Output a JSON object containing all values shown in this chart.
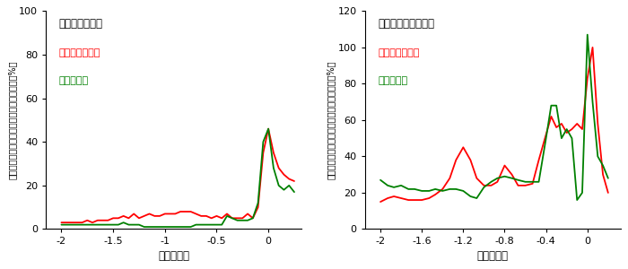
{
  "left_bracket_title": "【前腕の筋肉】",
  "right_bracket_title": "【手のひらの筋肉】",
  "legend_red": "赤：ストレート",
  "legend_green": "緑：カーブ",
  "xlabel": "時間（秒）",
  "ylabel": "最大随意収縮強度を基準とした表面筋電位（%）",
  "left_xlim": [
    -2.15,
    0.32
  ],
  "left_xticks": [
    -2,
    -1.5,
    -1,
    -0.5,
    0
  ],
  "left_xticklabels": [
    "-2",
    "-1.5",
    "-1",
    "-0.5",
    "0"
  ],
  "left_ylim": [
    0,
    100
  ],
  "left_yticks": [
    0,
    20,
    40,
    60,
    80,
    100
  ],
  "right_xlim": [
    -2.15,
    0.32
  ],
  "right_xticks": [
    -2,
    -1.6,
    -1.2,
    -0.8,
    -0.4,
    0
  ],
  "right_xticklabels": [
    "-2",
    "-1.6",
    "-1.2",
    "-0.8",
    "-0.4",
    "0"
  ],
  "right_ylim": [
    0,
    120
  ],
  "right_yticks": [
    0,
    20,
    40,
    60,
    80,
    100,
    120
  ],
  "red_color": "#ff0000",
  "green_color": "#008000",
  "line_width": 1.3,
  "left_red_x": [
    -2.0,
    -1.95,
    -1.9,
    -1.85,
    -1.8,
    -1.75,
    -1.7,
    -1.65,
    -1.6,
    -1.55,
    -1.5,
    -1.45,
    -1.4,
    -1.35,
    -1.3,
    -1.25,
    -1.2,
    -1.15,
    -1.1,
    -1.05,
    -1.0,
    -0.95,
    -0.9,
    -0.85,
    -0.8,
    -0.75,
    -0.7,
    -0.65,
    -0.6,
    -0.55,
    -0.5,
    -0.45,
    -0.4,
    -0.35,
    -0.3,
    -0.25,
    -0.2,
    -0.15,
    -0.1,
    -0.05,
    0.0,
    0.05,
    0.1,
    0.15,
    0.2,
    0.25
  ],
  "left_red_y": [
    3,
    3,
    3,
    3,
    3,
    4,
    3,
    4,
    4,
    4,
    5,
    5,
    6,
    5,
    7,
    5,
    6,
    7,
    6,
    6,
    7,
    7,
    7,
    8,
    8,
    8,
    7,
    6,
    6,
    5,
    6,
    5,
    7,
    5,
    5,
    5,
    7,
    5,
    10,
    35,
    46,
    35,
    28,
    25,
    23,
    22
  ],
  "left_green_x": [
    -2.0,
    -1.95,
    -1.9,
    -1.85,
    -1.8,
    -1.75,
    -1.7,
    -1.65,
    -1.6,
    -1.55,
    -1.5,
    -1.45,
    -1.4,
    -1.35,
    -1.3,
    -1.25,
    -1.2,
    -1.15,
    -1.1,
    -1.05,
    -1.0,
    -0.95,
    -0.9,
    -0.85,
    -0.8,
    -0.75,
    -0.7,
    -0.65,
    -0.6,
    -0.55,
    -0.5,
    -0.45,
    -0.4,
    -0.35,
    -0.3,
    -0.25,
    -0.2,
    -0.15,
    -0.1,
    -0.05,
    0.0,
    0.05,
    0.1,
    0.15,
    0.2,
    0.25
  ],
  "left_green_y": [
    2,
    2,
    2,
    2,
    2,
    2,
    2,
    2,
    2,
    2,
    2,
    2,
    3,
    2,
    2,
    2,
    1,
    1,
    1,
    1,
    1,
    1,
    1,
    1,
    1,
    1,
    2,
    2,
    2,
    2,
    2,
    2,
    6,
    5,
    4,
    4,
    4,
    5,
    12,
    40,
    46,
    28,
    20,
    18,
    20,
    17
  ],
  "right_red_x": [
    -2.0,
    -1.93,
    -1.87,
    -1.8,
    -1.73,
    -1.67,
    -1.6,
    -1.53,
    -1.47,
    -1.4,
    -1.33,
    -1.27,
    -1.2,
    -1.13,
    -1.07,
    -1.0,
    -0.93,
    -0.87,
    -0.8,
    -0.73,
    -0.67,
    -0.6,
    -0.53,
    -0.47,
    -0.4,
    -0.35,
    -0.3,
    -0.25,
    -0.2,
    -0.15,
    -0.1,
    -0.05,
    0.0,
    0.05,
    0.1,
    0.15,
    0.2
  ],
  "right_red_y": [
    15,
    17,
    18,
    17,
    16,
    16,
    16,
    17,
    19,
    22,
    28,
    38,
    45,
    38,
    28,
    24,
    24,
    26,
    35,
    30,
    24,
    24,
    25,
    38,
    52,
    62,
    56,
    58,
    53,
    55,
    58,
    55,
    83,
    100,
    58,
    30,
    20
  ],
  "right_green_x": [
    -2.0,
    -1.93,
    -1.87,
    -1.8,
    -1.73,
    -1.67,
    -1.6,
    -1.53,
    -1.47,
    -1.4,
    -1.33,
    -1.27,
    -1.2,
    -1.13,
    -1.07,
    -1.0,
    -0.93,
    -0.87,
    -0.8,
    -0.73,
    -0.67,
    -0.6,
    -0.53,
    -0.47,
    -0.4,
    -0.35,
    -0.3,
    -0.25,
    -0.2,
    -0.15,
    -0.1,
    -0.05,
    0.0,
    0.05,
    0.1,
    0.15,
    0.2
  ],
  "right_green_y": [
    27,
    24,
    23,
    24,
    22,
    22,
    21,
    21,
    22,
    21,
    22,
    22,
    21,
    18,
    17,
    23,
    26,
    28,
    29,
    28,
    27,
    26,
    26,
    26,
    50,
    68,
    68,
    50,
    55,
    50,
    16,
    20,
    107,
    70,
    40,
    35,
    28
  ]
}
